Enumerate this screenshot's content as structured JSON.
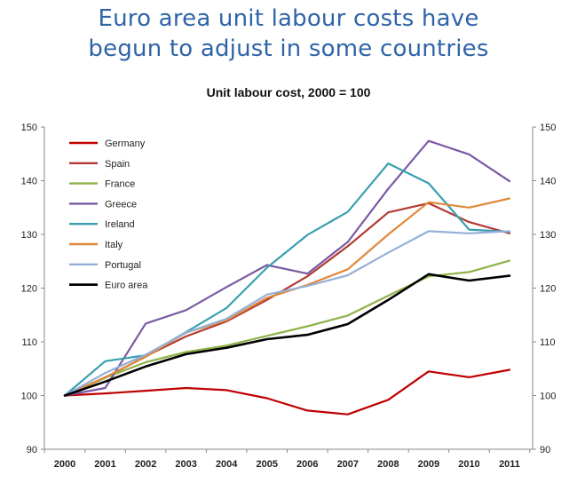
{
  "title_lines": [
    "Euro area unit labour costs have",
    "begun to adjust in some countries"
  ],
  "chart_data": {
    "type": "line",
    "title": "Euro area unit labour costs have begun to adjust in some countries",
    "subtitle": "Unit labour cost, 2000 = 100",
    "x": [
      "2000",
      "2001",
      "2002",
      "2003",
      "2004",
      "2005",
      "2006",
      "2007",
      "2008",
      "2009",
      "2010",
      "2011"
    ],
    "ylim": [
      90,
      150
    ],
    "yticks": [
      90,
      100,
      110,
      120,
      130,
      140,
      150
    ],
    "grid": false,
    "secondary_axis": true,
    "legend_position": "top-left",
    "series": [
      {
        "name": "Germany",
        "color": "#c00000",
        "values": [
          100,
          100.4,
          100.9,
          101.4,
          101.0,
          99.5,
          97.2,
          96.5,
          99.2,
          104.5,
          103.4,
          104.8
        ]
      },
      {
        "name": "Spain",
        "color": "#b33a32",
        "values": [
          100,
          103.3,
          107.3,
          111.0,
          113.8,
          117.8,
          122.2,
          127.8,
          134.1,
          135.8,
          132.3,
          130.2
        ]
      },
      {
        "name": "France",
        "color": "#8db34a",
        "values": [
          100,
          103.3,
          106.2,
          108.1,
          109.3,
          111.1,
          112.9,
          114.9,
          118.6,
          122.2,
          123.0,
          125.1
        ]
      },
      {
        "name": "Greece",
        "color": "#7b5aa3",
        "values": [
          100,
          101.4,
          113.4,
          115.9,
          120.2,
          124.3,
          122.7,
          128.6,
          138.5,
          147.4,
          144.9,
          139.9
        ]
      },
      {
        "name": "Ireland",
        "color": "#3a9fb0",
        "values": [
          100,
          106.4,
          107.5,
          111.8,
          116.3,
          123.8,
          129.9,
          134.2,
          143.2,
          139.5,
          130.9,
          130.5
        ]
      },
      {
        "name": "Italy",
        "color": "#e0883a",
        "values": [
          100,
          103.4,
          107.2,
          111.7,
          114.0,
          118.2,
          120.6,
          123.5,
          130.0,
          136.0,
          135.0,
          136.7
        ]
      },
      {
        "name": "Portugal",
        "color": "#95b0d7",
        "values": [
          100,
          104.2,
          107.6,
          111.7,
          114.3,
          118.8,
          120.4,
          122.4,
          126.6,
          130.6,
          130.2,
          130.6
        ]
      },
      {
        "name": "Euro area",
        "color": "#000000",
        "values": [
          100,
          102.6,
          105.4,
          107.7,
          108.9,
          110.5,
          111.3,
          113.3,
          117.8,
          122.6,
          121.4,
          122.3
        ]
      }
    ]
  }
}
